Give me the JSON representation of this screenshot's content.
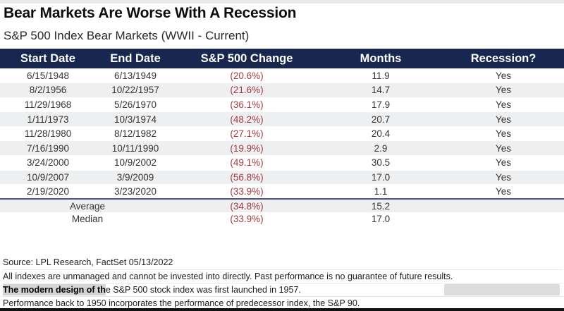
{
  "header": {
    "title": "Bear Markets Are Worse With A Recession",
    "subtitle": "S&P 500 Index Bear Markets (WWII - Current)"
  },
  "table": {
    "columns": [
      "Start Date",
      "End Date",
      "S&P 500 Change",
      "Months",
      "Recession?"
    ],
    "rows": [
      {
        "start": "6/15/1948",
        "end": "6/13/1949",
        "change": "(20.6%)",
        "months": "11.9",
        "recession": "Yes"
      },
      {
        "start": "8/2/1956",
        "end": "10/22/1957",
        "change": "(21.6%)",
        "months": "14.7",
        "recession": "Yes"
      },
      {
        "start": "11/29/1968",
        "end": "5/26/1970",
        "change": "(36.1%)",
        "months": "17.9",
        "recession": "Yes"
      },
      {
        "start": "1/11/1973",
        "end": "10/3/1974",
        "change": "(48.2%)",
        "months": "20.7",
        "recession": "Yes"
      },
      {
        "start": "11/28/1980",
        "end": "8/12/1982",
        "change": "(27.1%)",
        "months": "20.4",
        "recession": "Yes"
      },
      {
        "start": "7/16/1990",
        "end": "10/11/1990",
        "change": "(19.9%)",
        "months": "2.9",
        "recession": "Yes"
      },
      {
        "start": "3/24/2000",
        "end": "10/9/2002",
        "change": "(49.1%)",
        "months": "30.5",
        "recession": "Yes"
      },
      {
        "start": "10/9/2007",
        "end": "3/9/2009",
        "change": "(56.8%)",
        "months": "17.0",
        "recession": "Yes"
      },
      {
        "start": "2/19/2020",
        "end": "3/23/2020",
        "change": "(33.9%)",
        "months": "1.1",
        "recession": "Yes"
      }
    ],
    "summary": [
      {
        "label": "Average",
        "change": "(34.8%)",
        "months": "15.2"
      },
      {
        "label": "Median",
        "change": "(33.9%)",
        "months": "17.0"
      }
    ]
  },
  "footer": {
    "source": "Source: LPL Research, FactSet 05/13/2022",
    "disclaimer": "All indexes are unmanaged and cannot be invested into directly. Past performance is no guarantee of future results.",
    "note1_highlight": "The modern design of th",
    "note1_rest": "e S&P 500 stock index was first launched in 1957.",
    "note2": "Performance back to 1950 incorporates the performance of predecessor index, the S&P 90."
  },
  "colors": {
    "header_navy": "#182750",
    "change_red": "#a43a40",
    "row_stripe": "#eeeff0",
    "summary_separator": "#4a5380",
    "highlight_gray": "#d4d4d4"
  },
  "chart_data": {
    "type": "table",
    "title": "Bear Markets Are Worse With A Recession",
    "subtitle": "S&P 500 Index Bear Markets (WWII - Current)",
    "columns": [
      "Start Date",
      "End Date",
      "S&P 500 Change",
      "Months",
      "Recession?"
    ],
    "rows": [
      [
        "6/15/1948",
        "6/13/1949",
        "(20.6%)",
        11.9,
        "Yes"
      ],
      [
        "8/2/1956",
        "10/22/1957",
        "(21.6%)",
        14.7,
        "Yes"
      ],
      [
        "11/29/1968",
        "5/26/1970",
        "(36.1%)",
        17.9,
        "Yes"
      ],
      [
        "1/11/1973",
        "10/3/1974",
        "(48.2%)",
        20.7,
        "Yes"
      ],
      [
        "11/28/1980",
        "8/12/1982",
        "(27.1%)",
        20.4,
        "Yes"
      ],
      [
        "7/16/1990",
        "10/11/1990",
        "(19.9%)",
        2.9,
        "Yes"
      ],
      [
        "3/24/2000",
        "10/9/2002",
        "(49.1%)",
        30.5,
        "Yes"
      ],
      [
        "10/9/2007",
        "3/9/2009",
        "(56.8%)",
        17.0,
        "Yes"
      ],
      [
        "2/19/2020",
        "3/23/2020",
        "(33.9%)",
        1.1,
        "Yes"
      ]
    ],
    "summary_rows": [
      [
        "Average",
        "(34.8%)",
        15.2
      ],
      [
        "Median",
        "(33.9%)",
        17.0
      ]
    ],
    "source": "Source: LPL Research, FactSet 05/13/2022"
  }
}
